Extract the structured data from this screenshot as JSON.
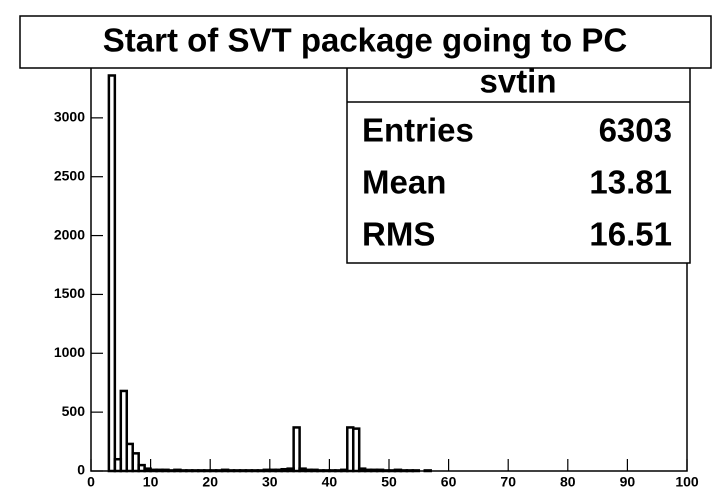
{
  "chart_data": {
    "type": "histogram",
    "title": "Start of SVT package going to PC",
    "stats": {
      "name": "svtin",
      "labels": [
        "Entries",
        "Mean",
        "RMS"
      ],
      "values": [
        "6303",
        "13.81",
        "16.51"
      ]
    },
    "bins": [
      0,
      1,
      2,
      3,
      4,
      5,
      6,
      7,
      8,
      9,
      10,
      11,
      12,
      13,
      14,
      15,
      16,
      17,
      18,
      19,
      20,
      21,
      22,
      23,
      24,
      25,
      26,
      27,
      28,
      29,
      30,
      31,
      32,
      33,
      34,
      35,
      36,
      37,
      38,
      39,
      40,
      41,
      42,
      43,
      44,
      45,
      46,
      47,
      48,
      49,
      50,
      51,
      52,
      53,
      54,
      55,
      56,
      57,
      58,
      59,
      60,
      61,
      62,
      63,
      64,
      65,
      66,
      67,
      68,
      69,
      70,
      71,
      72,
      73,
      74,
      75,
      76,
      77,
      78,
      79,
      80,
      81,
      82,
      83,
      84,
      85,
      86,
      87,
      88,
      89,
      90,
      91,
      92,
      93,
      94,
      95,
      96,
      97,
      98,
      99,
      100
    ],
    "values": [
      0,
      0,
      0,
      3360,
      100,
      680,
      230,
      150,
      50,
      20,
      10,
      10,
      10,
      5,
      10,
      5,
      5,
      5,
      5,
      5,
      5,
      5,
      10,
      5,
      5,
      5,
      5,
      5,
      5,
      10,
      10,
      10,
      15,
      20,
      370,
      20,
      10,
      10,
      5,
      5,
      5,
      5,
      10,
      370,
      360,
      20,
      10,
      10,
      10,
      5,
      5,
      10,
      5,
      5,
      5,
      0,
      5,
      0,
      0,
      0,
      0,
      0,
      0,
      0,
      0,
      0,
      0,
      0,
      0,
      0,
      0,
      0,
      0,
      0,
      0,
      0,
      0,
      0,
      0,
      0,
      0,
      0,
      0,
      0,
      0,
      0,
      0,
      0,
      0,
      0,
      0,
      0,
      0,
      0,
      0,
      0,
      0,
      0,
      0,
      0
    ],
    "color": "#000000",
    "xlim": [
      0,
      100
    ],
    "xticks": [
      0,
      10,
      20,
      30,
      40,
      50,
      60,
      70,
      80,
      90,
      100
    ],
    "ylim": [
      0,
      3500
    ],
    "yticks": [
      0,
      500,
      1000,
      1500,
      2000,
      2500,
      3000
    ]
  }
}
